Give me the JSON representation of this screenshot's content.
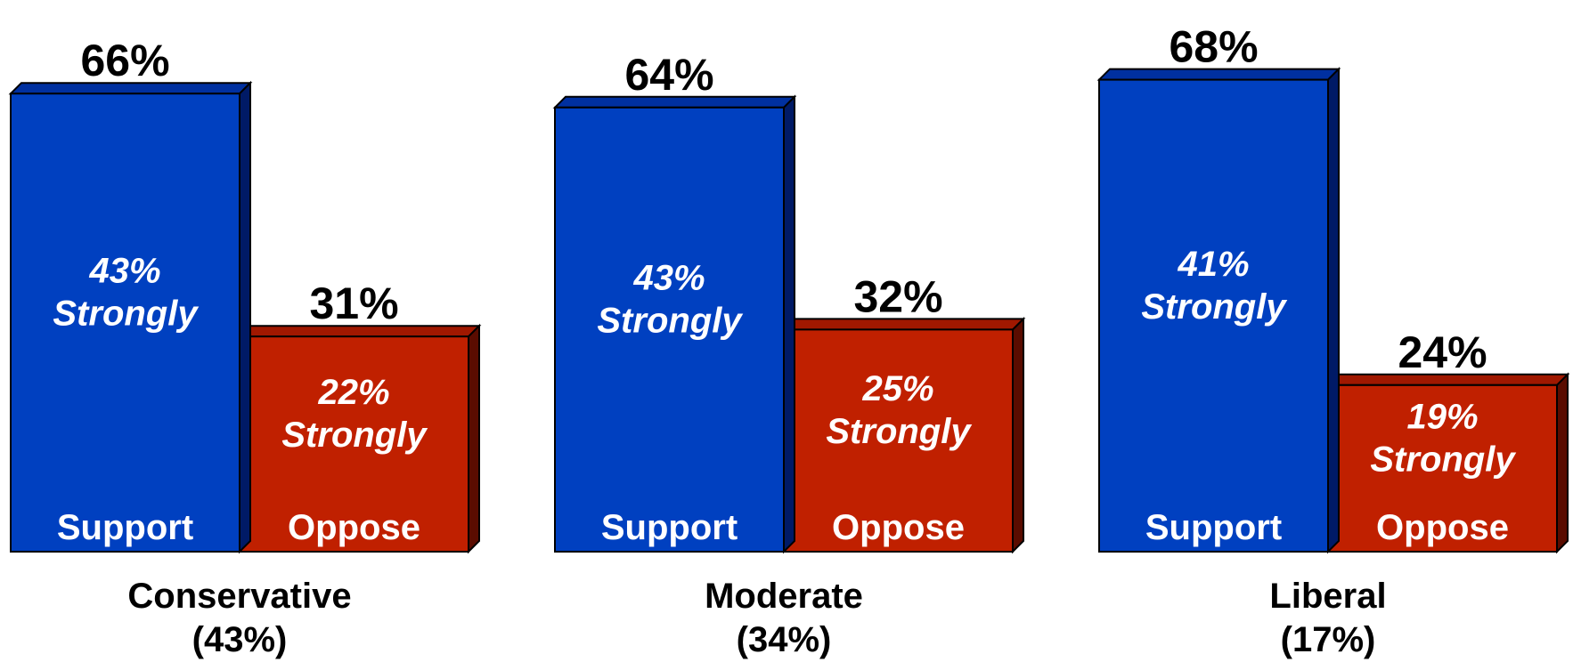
{
  "colors": {
    "support_front": "#0040C0",
    "support_top": "#0030A0",
    "support_side": "#001A66",
    "oppose_front": "#C02000",
    "oppose_top": "#A01800",
    "oppose_side": "#5A0C00",
    "outline": "#000000"
  },
  "chart_data": {
    "type": "bar",
    "categories": [
      "Conservative",
      "Moderate",
      "Liberal"
    ],
    "category_shares": [
      "(43%)",
      "(34%)",
      "(17%)"
    ],
    "ylim": [
      0,
      70
    ],
    "grid": false,
    "series": [
      {
        "name": "Support",
        "values": [
          66,
          64,
          68
        ],
        "value_labels": [
          "66%",
          "64%",
          "68%"
        ],
        "strongly_values": [
          43,
          43,
          41
        ],
        "strongly_labels": [
          "43%",
          "43%",
          "41%"
        ]
      },
      {
        "name": "Oppose",
        "values": [
          31,
          32,
          24
        ],
        "value_labels": [
          "31%",
          "32%",
          "24%"
        ],
        "strongly_values": [
          22,
          25,
          19
        ],
        "strongly_labels": [
          "22%",
          "25%",
          "19%"
        ]
      }
    ],
    "strongly_text": "Strongly"
  }
}
